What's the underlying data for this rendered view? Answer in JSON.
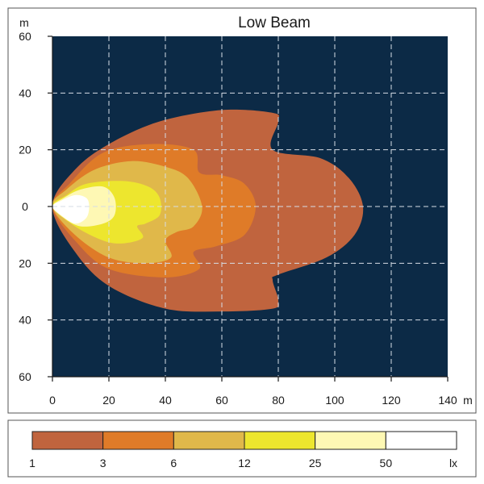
{
  "chart_data": {
    "type": "heatmap",
    "title": "Low Beam",
    "x_unit": "m",
    "y_unit": "m",
    "xlim": [
      0,
      140
    ],
    "ylim": [
      -60,
      60
    ],
    "x_ticks": [
      {
        "value": 0,
        "label": "0"
      },
      {
        "value": 20,
        "label": "20"
      },
      {
        "value": 40,
        "label": "40"
      },
      {
        "value": 60,
        "label": "60"
      },
      {
        "value": 80,
        "label": "80"
      },
      {
        "value": 100,
        "label": "100"
      },
      {
        "value": 120,
        "label": "120"
      },
      {
        "value": 140,
        "label": "140"
      }
    ],
    "y_ticks": [
      {
        "value": 60,
        "label": "60"
      },
      {
        "value": 40,
        "label": "40"
      },
      {
        "value": 20,
        "label": "20"
      },
      {
        "value": 0,
        "label": "0"
      },
      {
        "value": -20,
        "label": "20"
      },
      {
        "value": -40,
        "label": "40"
      },
      {
        "value": -60,
        "label": "60"
      }
    ],
    "grid": true,
    "background_color": "#0c2a46",
    "legend_unit": "lx",
    "legend": [
      {
        "label": "1",
        "color": "#c0643e"
      },
      {
        "label": "3",
        "color": "#df7b28"
      },
      {
        "label": "6",
        "color": "#e0b84a"
      },
      {
        "label": "12",
        "color": "#ede62e"
      },
      {
        "label": "25",
        "color": "#fef8b4"
      },
      {
        "label": "50",
        "color": "#ffffff"
      }
    ],
    "isolux_regions": [
      {
        "level": "1",
        "color": "#c0643e",
        "points": [
          [
            0,
            0
          ],
          [
            8,
            13
          ],
          [
            20,
            22
          ],
          [
            38,
            30
          ],
          [
            60,
            34
          ],
          [
            78,
            33
          ],
          [
            80,
            30
          ],
          [
            78,
            20
          ],
          [
            95,
            17
          ],
          [
            105,
            10
          ],
          [
            110,
            0
          ],
          [
            107,
            -10
          ],
          [
            97,
            -18
          ],
          [
            80,
            -24
          ],
          [
            78,
            -26
          ],
          [
            80,
            -33
          ],
          [
            78,
            -36
          ],
          [
            60,
            -37
          ],
          [
            40,
            -36
          ],
          [
            20,
            -28
          ],
          [
            8,
            -16
          ]
        ]
      },
      {
        "level": "3",
        "color": "#df7b28",
        "points": [
          [
            0,
            0
          ],
          [
            6,
            8
          ],
          [
            18,
            19
          ],
          [
            35,
            22
          ],
          [
            50,
            20
          ],
          [
            52,
            12
          ],
          [
            60,
            11
          ],
          [
            68,
            8
          ],
          [
            72,
            0
          ],
          [
            68,
            -10
          ],
          [
            58,
            -14
          ],
          [
            50,
            -16
          ],
          [
            52,
            -22
          ],
          [
            40,
            -25
          ],
          [
            20,
            -22
          ],
          [
            8,
            -12
          ]
        ]
      },
      {
        "level": "6",
        "color": "#e0b84a",
        "points": [
          [
            0,
            0
          ],
          [
            5,
            6
          ],
          [
            15,
            13
          ],
          [
            28,
            16
          ],
          [
            40,
            14
          ],
          [
            48,
            10
          ],
          [
            53,
            0
          ],
          [
            50,
            -7
          ],
          [
            44,
            -9
          ],
          [
            40,
            -12
          ],
          [
            42,
            -18
          ],
          [
            33,
            -20
          ],
          [
            20,
            -18
          ],
          [
            8,
            -10
          ]
        ]
      },
      {
        "level": "12",
        "color": "#ede62e",
        "points": [
          [
            0,
            0
          ],
          [
            5,
            4
          ],
          [
            12,
            8
          ],
          [
            25,
            9
          ],
          [
            34,
            7
          ],
          [
            38,
            3
          ],
          [
            38,
            -3
          ],
          [
            33,
            -6
          ],
          [
            30,
            -7
          ],
          [
            32,
            -11
          ],
          [
            25,
            -13
          ],
          [
            18,
            -12
          ],
          [
            8,
            -7
          ]
        ]
      },
      {
        "level": "25",
        "color": "#fef8b4",
        "points": [
          [
            0,
            0
          ],
          [
            4,
            3
          ],
          [
            10,
            6
          ],
          [
            18,
            7
          ],
          [
            22,
            3
          ],
          [
            22,
            -3
          ],
          [
            18,
            -6
          ],
          [
            10,
            -7
          ],
          [
            4,
            -4
          ]
        ]
      },
      {
        "level": "50",
        "color": "#ffffff",
        "points": [
          [
            0,
            0
          ],
          [
            3,
            2
          ],
          [
            8,
            4
          ],
          [
            12,
            3
          ],
          [
            13,
            0
          ],
          [
            12,
            -4
          ],
          [
            8,
            -6
          ],
          [
            3,
            -3
          ]
        ]
      }
    ]
  }
}
